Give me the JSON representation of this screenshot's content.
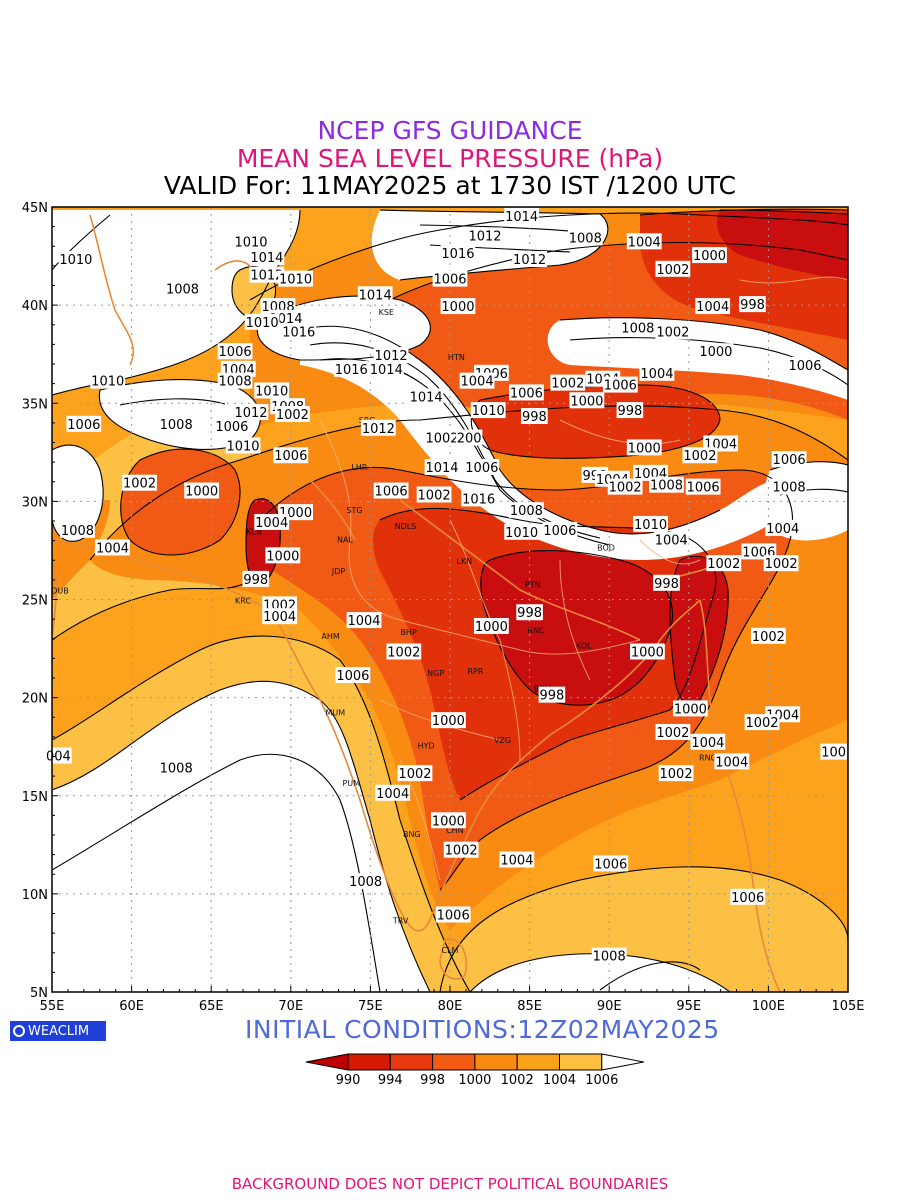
{
  "titles": {
    "line1": "NCEP GFS GUIDANCE",
    "line2": "MEAN SEA LEVEL PRESSURE (hPa)",
    "line3": "VALID For: 11MAY2025 at 1730 IST /1200 UTC"
  },
  "axes": {
    "lon_labels": [
      "55E",
      "60E",
      "65E",
      "70E",
      "75E",
      "80E",
      "85E",
      "90E",
      "95E",
      "100E",
      "105E"
    ],
    "lat_labels": [
      "45N",
      "40N",
      "35N",
      "30N",
      "25N",
      "20N",
      "15N",
      "10N",
      "5N"
    ],
    "lon_range": [
      55,
      105
    ],
    "lat_range": [
      5,
      45
    ]
  },
  "colorbar": {
    "labels": [
      "990",
      "994",
      "998",
      "1000",
      "1002",
      "1004",
      "1006"
    ],
    "colors": [
      "#c00000",
      "#d41a00",
      "#e8380e",
      "#f35a12",
      "#f98a10",
      "#fba318",
      "#fbc040"
    ]
  },
  "fill_colors": {
    "lt998": "#c80e0e",
    "p998": "#e0310a",
    "p1000": "#f05a14",
    "p1002": "#f98a12",
    "p1004": "#fca21c",
    "p1006": "#fcc044",
    "gt1006": "#ffffff"
  },
  "initial_conditions": "INITIAL  CONDITIONS:12Z02MAY2025",
  "logo_text": "WEACLIM",
  "disclaimer": "BACKGROUND DOES NOT DEPICT POLITICAL BOUNDARIES",
  "contour_labels": [
    {
      "text": "1014",
      "lon": 84.5,
      "lat": 44.5
    },
    {
      "text": "1012",
      "lon": 82.2,
      "lat": 43.5
    },
    {
      "text": "1008",
      "lon": 88.5,
      "lat": 43.4
    },
    {
      "text": "1004",
      "lon": 92.2,
      "lat": 43.2
    },
    {
      "text": "1000",
      "lon": 96.3,
      "lat": 42.5
    },
    {
      "text": "1002",
      "lon": 94.0,
      "lat": 41.8
    },
    {
      "text": "1016",
      "lon": 80.5,
      "lat": 42.6
    },
    {
      "text": "1012",
      "lon": 85.0,
      "lat": 42.3
    },
    {
      "text": "1006",
      "lon": 80.0,
      "lat": 41.3
    },
    {
      "text": "1010",
      "lon": 67.5,
      "lat": 43.2
    },
    {
      "text": "1010",
      "lon": 56.5,
      "lat": 42.3
    },
    {
      "text": "1014",
      "lon": 68.5,
      "lat": 42.4
    },
    {
      "text": "1012",
      "lon": 68.5,
      "lat": 41.5
    },
    {
      "text": "1010",
      "lon": 70.3,
      "lat": 41.3
    },
    {
      "text": "1008",
      "lon": 63.2,
      "lat": 40.8
    },
    {
      "text": "1014",
      "lon": 75.3,
      "lat": 40.5
    },
    {
      "text": "1000",
      "lon": 80.5,
      "lat": 39.9
    },
    {
      "text": "1004",
      "lon": 96.5,
      "lat": 39.9
    },
    {
      "text": "998",
      "lon": 99.0,
      "lat": 40.0
    },
    {
      "text": "1008",
      "lon": 69.2,
      "lat": 39.9
    },
    {
      "text": "1014",
      "lon": 69.7,
      "lat": 39.3
    },
    {
      "text": "1016",
      "lon": 70.5,
      "lat": 38.6
    },
    {
      "text": "1010",
      "lon": 68.2,
      "lat": 39.1
    },
    {
      "text": "1008",
      "lon": 91.8,
      "lat": 38.8
    },
    {
      "text": "1002",
      "lon": 94.0,
      "lat": 38.6
    },
    {
      "text": "1000",
      "lon": 96.7,
      "lat": 37.6
    },
    {
      "text": "1006",
      "lon": 66.5,
      "lat": 37.6
    },
    {
      "text": "1004",
      "lon": 66.7,
      "lat": 36.7
    },
    {
      "text": "1012",
      "lon": 76.3,
      "lat": 37.4
    },
    {
      "text": "1014",
      "lon": 76.0,
      "lat": 36.7
    },
    {
      "text": "1016",
      "lon": 73.8,
      "lat": 36.7
    },
    {
      "text": "1006",
      "lon": 82.6,
      "lat": 36.5
    },
    {
      "text": "1004",
      "lon": 93.0,
      "lat": 36.5
    },
    {
      "text": "1006",
      "lon": 102.3,
      "lat": 36.9
    },
    {
      "text": "1010",
      "lon": 58.5,
      "lat": 36.1
    },
    {
      "text": "1008",
      "lon": 66.5,
      "lat": 36.1
    },
    {
      "text": "1004",
      "lon": 81.7,
      "lat": 36.1
    },
    {
      "text": "1006",
      "lon": 84.8,
      "lat": 35.5
    },
    {
      "text": "1002",
      "lon": 87.4,
      "lat": 36.0
    },
    {
      "text": "1004",
      "lon": 89.6,
      "lat": 36.2
    },
    {
      "text": "1006",
      "lon": 90.7,
      "lat": 35.9
    },
    {
      "text": "1010",
      "lon": 68.8,
      "lat": 35.6
    },
    {
      "text": "1014",
      "lon": 78.5,
      "lat": 35.3
    },
    {
      "text": "1000",
      "lon": 88.6,
      "lat": 35.1
    },
    {
      "text": "1008",
      "lon": 69.8,
      "lat": 34.8
    },
    {
      "text": "1002",
      "lon": 70.1,
      "lat": 34.4
    },
    {
      "text": "1012",
      "lon": 67.5,
      "lat": 34.5
    },
    {
      "text": "1010",
      "lon": 82.4,
      "lat": 34.6
    },
    {
      "text": "998",
      "lon": 85.3,
      "lat": 34.3
    },
    {
      "text": "998",
      "lon": 91.3,
      "lat": 34.6
    },
    {
      "text": "1006",
      "lon": 57.0,
      "lat": 33.9
    },
    {
      "text": "1008",
      "lon": 62.8,
      "lat": 33.9
    },
    {
      "text": "1006",
      "lon": 66.3,
      "lat": 33.8
    },
    {
      "text": "1012",
      "lon": 75.5,
      "lat": 33.7
    },
    {
      "text": "1002",
      "lon": 79.5,
      "lat": 33.2
    },
    {
      "text": "200",
      "lon": 81.2,
      "lat": 33.2
    },
    {
      "text": "1010",
      "lon": 67.0,
      "lat": 32.8
    },
    {
      "text": "1000",
      "lon": 92.2,
      "lat": 32.7
    },
    {
      "text": "1004",
      "lon": 97.0,
      "lat": 32.9
    },
    {
      "text": "1002",
      "lon": 95.7,
      "lat": 32.3
    },
    {
      "text": "1006",
      "lon": 101.3,
      "lat": 32.1
    },
    {
      "text": "1006",
      "lon": 70.0,
      "lat": 32.3
    },
    {
      "text": "1014",
      "lon": 79.5,
      "lat": 31.7
    },
    {
      "text": "1006",
      "lon": 82.0,
      "lat": 31.7
    },
    {
      "text": "998",
      "lon": 89.1,
      "lat": 31.3
    },
    {
      "text": "1004",
      "lon": 90.2,
      "lat": 31.1
    },
    {
      "text": "1002",
      "lon": 91.0,
      "lat": 30.7
    },
    {
      "text": "1004",
      "lon": 92.6,
      "lat": 31.4
    },
    {
      "text": "1008",
      "lon": 93.6,
      "lat": 30.8
    },
    {
      "text": "1006",
      "lon": 95.9,
      "lat": 30.7
    },
    {
      "text": "1008",
      "lon": 101.3,
      "lat": 30.7
    },
    {
      "text": "1002",
      "lon": 60.5,
      "lat": 30.9
    },
    {
      "text": "1000",
      "lon": 64.4,
      "lat": 30.5
    },
    {
      "text": "1006",
      "lon": 76.3,
      "lat": 30.5
    },
    {
      "text": "1002",
      "lon": 79.0,
      "lat": 30.3
    },
    {
      "text": "1016",
      "lon": 81.8,
      "lat": 30.1
    },
    {
      "text": "1008",
      "lon": 84.8,
      "lat": 29.5
    },
    {
      "text": "1004",
      "lon": 100.9,
      "lat": 28.6
    },
    {
      "text": "1000",
      "lon": 70.3,
      "lat": 29.4
    },
    {
      "text": "1004",
      "lon": 68.8,
      "lat": 28.9
    },
    {
      "text": "1008",
      "lon": 56.6,
      "lat": 28.5
    },
    {
      "text": "1010",
      "lon": 84.5,
      "lat": 28.4
    },
    {
      "text": "1006",
      "lon": 86.9,
      "lat": 28.5
    },
    {
      "text": "1010",
      "lon": 92.6,
      "lat": 28.8
    },
    {
      "text": "1004",
      "lon": 93.9,
      "lat": 28.0
    },
    {
      "text": "1004",
      "lon": 58.8,
      "lat": 27.6
    },
    {
      "text": "1000",
      "lon": 69.5,
      "lat": 27.2
    },
    {
      "text": "1006",
      "lon": 99.4,
      "lat": 27.4
    },
    {
      "text": "1002",
      "lon": 97.2,
      "lat": 26.8
    },
    {
      "text": "1002",
      "lon": 100.8,
      "lat": 26.8
    },
    {
      "text": "998",
      "lon": 67.8,
      "lat": 26.0
    },
    {
      "text": "998",
      "lon": 93.6,
      "lat": 25.8
    },
    {
      "text": "1002",
      "lon": 69.3,
      "lat": 24.7
    },
    {
      "text": "1004",
      "lon": 69.3,
      "lat": 24.1
    },
    {
      "text": "998",
      "lon": 85.0,
      "lat": 24.3
    },
    {
      "text": "1004",
      "lon": 74.6,
      "lat": 23.9
    },
    {
      "text": "1000",
      "lon": 82.6,
      "lat": 23.6
    },
    {
      "text": "1002",
      "lon": 100.0,
      "lat": 23.1
    },
    {
      "text": "1002",
      "lon": 77.1,
      "lat": 22.3
    },
    {
      "text": "1000",
      "lon": 92.4,
      "lat": 22.3
    },
    {
      "text": "1006",
      "lon": 73.9,
      "lat": 21.1
    },
    {
      "text": "998",
      "lon": 86.4,
      "lat": 20.1
    },
    {
      "text": "1000",
      "lon": 95.1,
      "lat": 19.4
    },
    {
      "text": "1004",
      "lon": 100.9,
      "lat": 19.1
    },
    {
      "text": "1002",
      "lon": 99.6,
      "lat": 18.7
    },
    {
      "text": "1000",
      "lon": 79.9,
      "lat": 18.8
    },
    {
      "text": "1002",
      "lon": 94.0,
      "lat": 18.2
    },
    {
      "text": "1004",
      "lon": 96.2,
      "lat": 17.7
    },
    {
      "text": "004",
      "lon": 55.4,
      "lat": 17.0
    },
    {
      "text": "100",
      "lon": 104.1,
      "lat": 17.2
    },
    {
      "text": "1004",
      "lon": 97.7,
      "lat": 16.7
    },
    {
      "text": "1008",
      "lon": 62.8,
      "lat": 16.4
    },
    {
      "text": "1002",
      "lon": 94.2,
      "lat": 16.1
    },
    {
      "text": "1002",
      "lon": 77.8,
      "lat": 16.1
    },
    {
      "text": "1004",
      "lon": 76.4,
      "lat": 15.1
    },
    {
      "text": "1000",
      "lon": 79.9,
      "lat": 13.7
    },
    {
      "text": "1002",
      "lon": 80.7,
      "lat": 12.2
    },
    {
      "text": "1004",
      "lon": 84.2,
      "lat": 11.7
    },
    {
      "text": "1006",
      "lon": 90.1,
      "lat": 11.5
    },
    {
      "text": "1008",
      "lon": 74.7,
      "lat": 10.6
    },
    {
      "text": "1006",
      "lon": 80.2,
      "lat": 8.9
    },
    {
      "text": "1006",
      "lon": 98.7,
      "lat": 9.8
    },
    {
      "text": "1008",
      "lon": 90.0,
      "lat": 6.8
    }
  ],
  "city_labels": [
    {
      "text": "KSE",
      "lon": 76.0,
      "lat": 39.5
    },
    {
      "text": "HTN",
      "lon": 80.4,
      "lat": 37.2
    },
    {
      "text": "SRG",
      "lon": 74.8,
      "lat": 34.0
    },
    {
      "text": "LHR",
      "lon": 74.3,
      "lat": 31.6
    },
    {
      "text": "STG",
      "lon": 74.0,
      "lat": 29.4
    },
    {
      "text": "NDLS",
      "lon": 77.2,
      "lat": 28.6
    },
    {
      "text": "NAL",
      "lon": 73.4,
      "lat": 27.9
    },
    {
      "text": "JDP",
      "lon": 73.0,
      "lat": 26.3
    },
    {
      "text": "LKN",
      "lon": 80.9,
      "lat": 26.8
    },
    {
      "text": "PTN",
      "lon": 85.2,
      "lat": 25.6
    },
    {
      "text": "KCB",
      "lon": 67.7,
      "lat": 28.3
    },
    {
      "text": "DUB",
      "lon": 55.5,
      "lat": 25.3
    },
    {
      "text": "KRC",
      "lon": 67.0,
      "lat": 24.8
    },
    {
      "text": "AHM",
      "lon": 72.5,
      "lat": 23.0
    },
    {
      "text": "BHP",
      "lon": 77.4,
      "lat": 23.2
    },
    {
      "text": "RNC",
      "lon": 85.4,
      "lat": 23.3
    },
    {
      "text": "KOL",
      "lon": 88.4,
      "lat": 22.5
    },
    {
      "text": "NGP",
      "lon": 79.1,
      "lat": 21.1
    },
    {
      "text": "RPR",
      "lon": 81.6,
      "lat": 21.2
    },
    {
      "text": "MUM",
      "lon": 72.8,
      "lat": 19.1
    },
    {
      "text": "BBN",
      "lon": 85.8,
      "lat": 20.3
    },
    {
      "text": "HYD",
      "lon": 78.5,
      "lat": 17.4
    },
    {
      "text": "VZG",
      "lon": 83.3,
      "lat": 17.7
    },
    {
      "text": "PUM",
      "lon": 73.8,
      "lat": 15.5
    },
    {
      "text": "CHN",
      "lon": 80.3,
      "lat": 13.1
    },
    {
      "text": "BNG",
      "lon": 77.6,
      "lat": 12.9
    },
    {
      "text": "TRV",
      "lon": 76.9,
      "lat": 8.5
    },
    {
      "text": "CLM",
      "lon": 80.0,
      "lat": 7.0
    },
    {
      "text": "RNG",
      "lon": 96.2,
      "lat": 16.8
    },
    {
      "text": "BOD",
      "lon": 89.8,
      "lat": 27.5
    }
  ]
}
